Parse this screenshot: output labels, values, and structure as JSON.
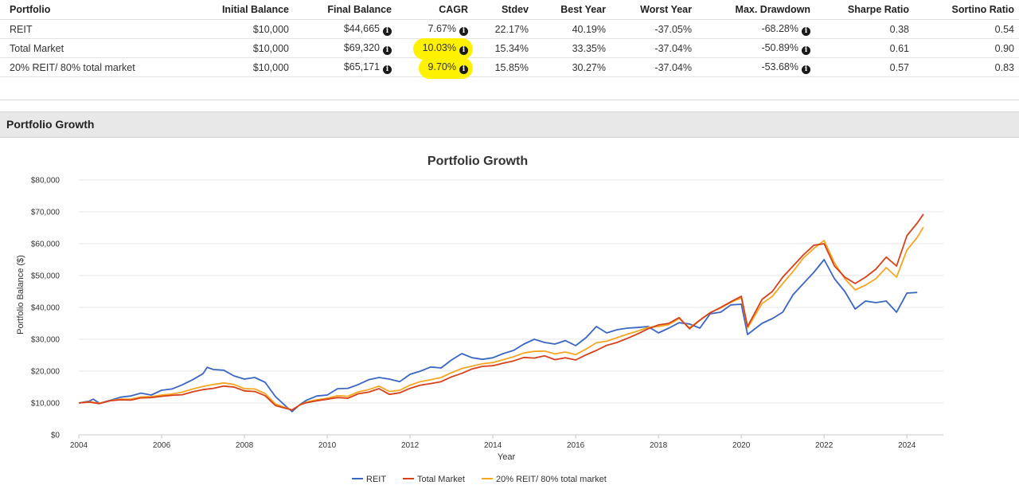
{
  "stats_table": {
    "headers": [
      "Portfolio",
      "Initial Balance",
      "Final Balance",
      "CAGR",
      "Stdev",
      "Best Year",
      "Worst Year",
      "Max. Drawdown",
      "Sharpe Ratio",
      "Sortino Ratio"
    ],
    "rows": [
      {
        "portfolio": "REIT",
        "initial": "$10,000",
        "final": "$44,665",
        "cagr": "7.67%",
        "stdev": "22.17%",
        "best": "40.19%",
        "worst": "-37.05%",
        "drawdown": "-68.28%",
        "sharpe": "0.38",
        "sortino": "0.54",
        "cagr_highlight": false
      },
      {
        "portfolio": "Total Market",
        "initial": "$10,000",
        "final": "$69,320",
        "cagr": "10.03%",
        "stdev": "15.34%",
        "best": "33.35%",
        "worst": "-37.04%",
        "drawdown": "-50.89%",
        "sharpe": "0.61",
        "sortino": "0.90",
        "cagr_highlight": true
      },
      {
        "portfolio": "20% REIT/ 80% total market",
        "initial": "$10,000",
        "final": "$65,171",
        "cagr": "9.70%",
        "stdev": "15.85%",
        "best": "30.27%",
        "worst": "-37.04%",
        "drawdown": "-53.68%",
        "sharpe": "0.57",
        "sortino": "0.83",
        "cagr_highlight": true
      }
    ],
    "info_icon": "info-icon",
    "highlight_color": "#fff200"
  },
  "section": {
    "title": "Portfolio Growth"
  },
  "chart_data": {
    "type": "line",
    "title": "Portfolio Growth",
    "xlabel": "Year",
    "ylabel": "Portfolio Balance ($)",
    "xlim": [
      2004,
      2024.4
    ],
    "ylim": [
      0,
      80000
    ],
    "xticks": [
      2004,
      2006,
      2008,
      2010,
      2012,
      2014,
      2016,
      2018,
      2020,
      2022,
      2024
    ],
    "yticks": [
      0,
      10000,
      20000,
      30000,
      40000,
      50000,
      60000,
      70000,
      80000
    ],
    "ytick_labels": [
      "$0",
      "$10,000",
      "$20,000",
      "$30,000",
      "$40,000",
      "$50,000",
      "$60,000",
      "$70,000",
      "$80,000"
    ],
    "grid": true,
    "legend_position": "bottom",
    "series": [
      {
        "name": "REIT",
        "color": "#3a66c4",
        "points": [
          [
            2004.0,
            10000
          ],
          [
            2004.25,
            10600
          ],
          [
            2004.35,
            11200
          ],
          [
            2004.5,
            9900
          ],
          [
            2004.75,
            10800
          ],
          [
            2005.0,
            11800
          ],
          [
            2005.25,
            12200
          ],
          [
            2005.5,
            13100
          ],
          [
            2005.75,
            12500
          ],
          [
            2006.0,
            14000
          ],
          [
            2006.25,
            14400
          ],
          [
            2006.5,
            15700
          ],
          [
            2006.75,
            17300
          ],
          [
            2007.0,
            19200
          ],
          [
            2007.1,
            21200
          ],
          [
            2007.25,
            20500
          ],
          [
            2007.5,
            20300
          ],
          [
            2007.75,
            18500
          ],
          [
            2008.0,
            17500
          ],
          [
            2008.25,
            18000
          ],
          [
            2008.5,
            16500
          ],
          [
            2008.75,
            12000
          ],
          [
            2009.0,
            9000
          ],
          [
            2009.15,
            7300
          ],
          [
            2009.35,
            9600
          ],
          [
            2009.5,
            10900
          ],
          [
            2009.75,
            12200
          ],
          [
            2010.0,
            12500
          ],
          [
            2010.25,
            14500
          ],
          [
            2010.5,
            14600
          ],
          [
            2010.75,
            15800
          ],
          [
            2011.0,
            17300
          ],
          [
            2011.25,
            18000
          ],
          [
            2011.5,
            17500
          ],
          [
            2011.75,
            16700
          ],
          [
            2012.0,
            19000
          ],
          [
            2012.25,
            20000
          ],
          [
            2012.5,
            21300
          ],
          [
            2012.75,
            21000
          ],
          [
            2013.0,
            23500
          ],
          [
            2013.25,
            25500
          ],
          [
            2013.5,
            24200
          ],
          [
            2013.75,
            23700
          ],
          [
            2014.0,
            24200
          ],
          [
            2014.25,
            25500
          ],
          [
            2014.5,
            26500
          ],
          [
            2014.75,
            28500
          ],
          [
            2015.0,
            30000
          ],
          [
            2015.25,
            29000
          ],
          [
            2015.5,
            28500
          ],
          [
            2015.75,
            29600
          ],
          [
            2016.0,
            28000
          ],
          [
            2016.25,
            30500
          ],
          [
            2016.5,
            34000
          ],
          [
            2016.75,
            32000
          ],
          [
            2017.0,
            33000
          ],
          [
            2017.25,
            33500
          ],
          [
            2017.5,
            33700
          ],
          [
            2017.75,
            34000
          ],
          [
            2018.0,
            32000
          ],
          [
            2018.25,
            33500
          ],
          [
            2018.5,
            35200
          ],
          [
            2018.75,
            34800
          ],
          [
            2019.0,
            33500
          ],
          [
            2019.25,
            38000
          ],
          [
            2019.5,
            38500
          ],
          [
            2019.75,
            40800
          ],
          [
            2020.0,
            41000
          ],
          [
            2020.15,
            31500
          ],
          [
            2020.5,
            35000
          ],
          [
            2020.75,
            36500
          ],
          [
            2021.0,
            38500
          ],
          [
            2021.25,
            44000
          ],
          [
            2021.5,
            47500
          ],
          [
            2021.75,
            51000
          ],
          [
            2022.0,
            55000
          ],
          [
            2022.25,
            49000
          ],
          [
            2022.5,
            45000
          ],
          [
            2022.75,
            39500
          ],
          [
            2023.0,
            42000
          ],
          [
            2023.25,
            41500
          ],
          [
            2023.5,
            42000
          ],
          [
            2023.75,
            38500
          ],
          [
            2024.0,
            44500
          ],
          [
            2024.25,
            44700
          ]
        ]
      },
      {
        "name": "Total Market",
        "color": "#d7401a",
        "points": [
          [
            2004.0,
            10000
          ],
          [
            2004.25,
            10300
          ],
          [
            2004.5,
            9800
          ],
          [
            2004.75,
            10700
          ],
          [
            2005.0,
            11000
          ],
          [
            2005.25,
            10900
          ],
          [
            2005.5,
            11600
          ],
          [
            2005.75,
            11700
          ],
          [
            2006.0,
            12100
          ],
          [
            2006.25,
            12400
          ],
          [
            2006.5,
            12600
          ],
          [
            2006.75,
            13500
          ],
          [
            2007.0,
            14200
          ],
          [
            2007.25,
            14600
          ],
          [
            2007.5,
            15300
          ],
          [
            2007.75,
            15000
          ],
          [
            2008.0,
            13800
          ],
          [
            2008.25,
            13600
          ],
          [
            2008.5,
            12300
          ],
          [
            2008.75,
            9200
          ],
          [
            2009.0,
            8300
          ],
          [
            2009.15,
            7800
          ],
          [
            2009.35,
            9500
          ],
          [
            2009.5,
            10100
          ],
          [
            2009.75,
            10700
          ],
          [
            2010.0,
            11200
          ],
          [
            2010.25,
            11700
          ],
          [
            2010.5,
            11500
          ],
          [
            2010.75,
            12900
          ],
          [
            2011.0,
            13400
          ],
          [
            2011.25,
            14500
          ],
          [
            2011.5,
            12700
          ],
          [
            2011.75,
            13200
          ],
          [
            2012.0,
            14600
          ],
          [
            2012.25,
            15600
          ],
          [
            2012.5,
            16100
          ],
          [
            2012.75,
            16700
          ],
          [
            2013.0,
            18200
          ],
          [
            2013.25,
            19300
          ],
          [
            2013.5,
            20700
          ],
          [
            2013.75,
            21500
          ],
          [
            2014.0,
            21700
          ],
          [
            2014.25,
            22500
          ],
          [
            2014.5,
            23200
          ],
          [
            2014.75,
            24300
          ],
          [
            2015.0,
            24100
          ],
          [
            2015.25,
            24800
          ],
          [
            2015.5,
            23600
          ],
          [
            2015.75,
            24200
          ],
          [
            2016.0,
            23500
          ],
          [
            2016.25,
            25100
          ],
          [
            2016.5,
            26500
          ],
          [
            2016.75,
            28100
          ],
          [
            2017.0,
            29000
          ],
          [
            2017.25,
            30300
          ],
          [
            2017.5,
            31700
          ],
          [
            2017.75,
            33300
          ],
          [
            2018.0,
            34500
          ],
          [
            2018.25,
            35000
          ],
          [
            2018.5,
            36800
          ],
          [
            2018.75,
            33300
          ],
          [
            2019.0,
            36000
          ],
          [
            2019.25,
            38300
          ],
          [
            2019.5,
            40000
          ],
          [
            2019.75,
            41800
          ],
          [
            2020.0,
            43500
          ],
          [
            2020.15,
            34000
          ],
          [
            2020.5,
            42500
          ],
          [
            2020.75,
            45000
          ],
          [
            2021.0,
            49500
          ],
          [
            2021.25,
            53000
          ],
          [
            2021.5,
            56500
          ],
          [
            2021.75,
            59500
          ],
          [
            2022.0,
            60000
          ],
          [
            2022.25,
            53000
          ],
          [
            2022.5,
            49500
          ],
          [
            2022.75,
            47500
          ],
          [
            2023.0,
            49500
          ],
          [
            2023.25,
            52000
          ],
          [
            2023.5,
            55800
          ],
          [
            2023.75,
            53000
          ],
          [
            2024.0,
            62500
          ],
          [
            2024.25,
            66500
          ],
          [
            2024.4,
            69300
          ]
        ]
      },
      {
        "name": "20% REIT/ 80% total market",
        "color": "#f5a623",
        "points": [
          [
            2004.0,
            10000
          ],
          [
            2004.25,
            10400
          ],
          [
            2004.5,
            9900
          ],
          [
            2004.75,
            10700
          ],
          [
            2005.0,
            11200
          ],
          [
            2005.25,
            11200
          ],
          [
            2005.5,
            11900
          ],
          [
            2005.75,
            12000
          ],
          [
            2006.0,
            12500
          ],
          [
            2006.25,
            12800
          ],
          [
            2006.5,
            13400
          ],
          [
            2006.75,
            14400
          ],
          [
            2007.0,
            15200
          ],
          [
            2007.25,
            15800
          ],
          [
            2007.5,
            16300
          ],
          [
            2007.75,
            15800
          ],
          [
            2008.0,
            14500
          ],
          [
            2008.25,
            14400
          ],
          [
            2008.5,
            13000
          ],
          [
            2008.75,
            9700
          ],
          [
            2009.0,
            8500
          ],
          [
            2009.15,
            7800
          ],
          [
            2009.35,
            9500
          ],
          [
            2009.5,
            10300
          ],
          [
            2009.75,
            11000
          ],
          [
            2010.0,
            11500
          ],
          [
            2010.25,
            12300
          ],
          [
            2010.5,
            12100
          ],
          [
            2010.75,
            13500
          ],
          [
            2011.0,
            14200
          ],
          [
            2011.25,
            15300
          ],
          [
            2011.5,
            13600
          ],
          [
            2011.75,
            14000
          ],
          [
            2012.0,
            15600
          ],
          [
            2012.25,
            16700
          ],
          [
            2012.5,
            17300
          ],
          [
            2012.75,
            18000
          ],
          [
            2013.0,
            19500
          ],
          [
            2013.25,
            20800
          ],
          [
            2013.5,
            21600
          ],
          [
            2013.75,
            22300
          ],
          [
            2014.0,
            22700
          ],
          [
            2014.25,
            23600
          ],
          [
            2014.5,
            24500
          ],
          [
            2014.75,
            25700
          ],
          [
            2015.0,
            26200
          ],
          [
            2015.25,
            26300
          ],
          [
            2015.5,
            25400
          ],
          [
            2015.75,
            26000
          ],
          [
            2016.0,
            25200
          ],
          [
            2016.25,
            26900
          ],
          [
            2016.5,
            28900
          ],
          [
            2016.75,
            29400
          ],
          [
            2017.0,
            30500
          ],
          [
            2017.25,
            31600
          ],
          [
            2017.5,
            32600
          ],
          [
            2017.75,
            33700
          ],
          [
            2018.0,
            34000
          ],
          [
            2018.25,
            34600
          ],
          [
            2018.5,
            36500
          ],
          [
            2018.75,
            33600
          ],
          [
            2019.0,
            36000
          ],
          [
            2019.25,
            38400
          ],
          [
            2019.5,
            39800
          ],
          [
            2019.75,
            41600
          ],
          [
            2020.0,
            43000
          ],
          [
            2020.15,
            33500
          ],
          [
            2020.5,
            41200
          ],
          [
            2020.75,
            43500
          ],
          [
            2021.0,
            47500
          ],
          [
            2021.25,
            51300
          ],
          [
            2021.5,
            55500
          ],
          [
            2021.75,
            58500
          ],
          [
            2022.0,
            61000
          ],
          [
            2022.25,
            54000
          ],
          [
            2022.5,
            49000
          ],
          [
            2022.75,
            45500
          ],
          [
            2023.0,
            47000
          ],
          [
            2023.25,
            49000
          ],
          [
            2023.5,
            52500
          ],
          [
            2023.75,
            49500
          ],
          [
            2024.0,
            58000
          ],
          [
            2024.25,
            62000
          ],
          [
            2024.4,
            65200
          ]
        ]
      }
    ]
  }
}
